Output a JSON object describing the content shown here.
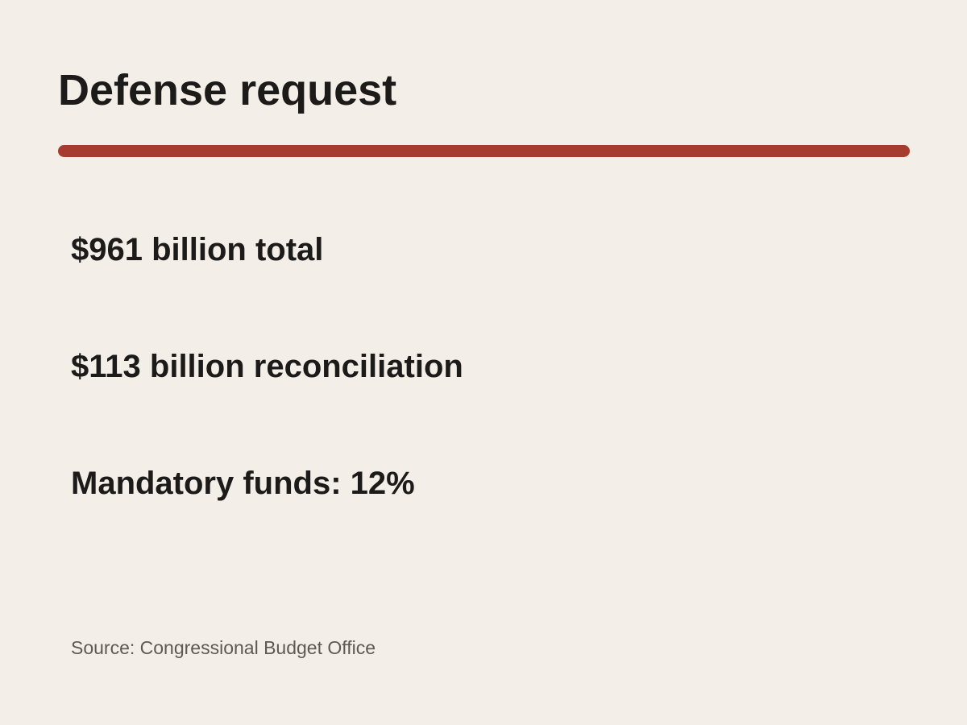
{
  "colors": {
    "background": "#f3eee7",
    "accent_rule": "#a63b30",
    "text": "#1c1b19",
    "source_text": "#5d5953"
  },
  "title": "Defense request",
  "stats": [
    "$961 billion total",
    "$113 billion reconciliation",
    "Mandatory funds: 12%"
  ],
  "source": "Source: Congressional Budget Office"
}
